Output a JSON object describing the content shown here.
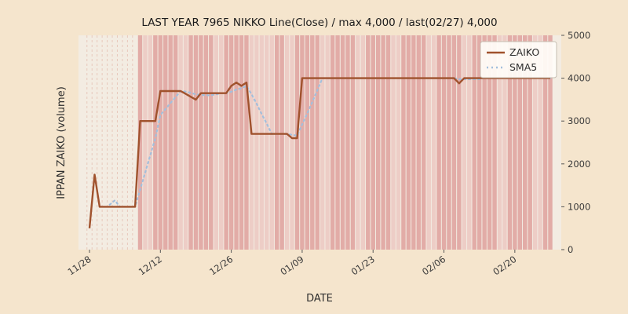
{
  "chart_data": {
    "type": "line",
    "title": "LAST YEAR 7965 NIKKO Line(Close) / max 4,000 / last(02/27) 4,000",
    "xlabel": "DATE",
    "ylabel": "IPPAN ZAIKO (volume)",
    "x_start": "11/28",
    "x_end": "02/27",
    "x_ticks": [
      "11/28",
      "12/12",
      "12/26",
      "01/09",
      "01/23",
      "02/06",
      "02/20"
    ],
    "y_ticks": [
      0,
      1000,
      2000,
      3000,
      4000,
      5000
    ],
    "ylim": [
      0,
      5000
    ],
    "legend_position": "upper right",
    "max_value": 4000,
    "last_date": "02/27",
    "last_value": 4000,
    "series": [
      {
        "name": "ZAIKO",
        "style": "solid",
        "color": "#a0522d",
        "points": [
          [
            "11/28",
            500
          ],
          [
            "11/29",
            1750
          ],
          [
            "11/30",
            1000
          ],
          [
            "12/07",
            1000
          ],
          [
            "12/08",
            3000
          ],
          [
            "12/11",
            3000
          ],
          [
            "12/12",
            3700
          ],
          [
            "12/16",
            3700
          ],
          [
            "12/19",
            3500
          ],
          [
            "12/20",
            3650
          ],
          [
            "12/25",
            3650
          ],
          [
            "12/26",
            3820
          ],
          [
            "12/27",
            3900
          ],
          [
            "12/28",
            3820
          ],
          [
            "12/29",
            3900
          ],
          [
            "12/30",
            2700
          ],
          [
            "01/06",
            2700
          ],
          [
            "01/07",
            2600
          ],
          [
            "01/08",
            2600
          ],
          [
            "01/09",
            4000
          ],
          [
            "02/08",
            4000
          ],
          [
            "02/09",
            3880
          ],
          [
            "02/10",
            4000
          ],
          [
            "02/27",
            4000
          ]
        ]
      },
      {
        "name": "SMA5",
        "style": "dotted",
        "color": "#a3bfdc",
        "derived": "5-day moving average of ZAIKO"
      }
    ],
    "shading": {
      "plot_bg": "#f3ece2",
      "band_color": "#e2aca7",
      "band_light_color": "#edcdc6",
      "band_start": "12/08",
      "light_day_offsets": [
        4,
        5
      ],
      "light_ranges": [
        [
          "12/31",
          "01/03"
        ]
      ],
      "pre_band_grid_color": "#e8c8bb"
    },
    "colors": {
      "figure_bg": "#f5e5cd",
      "text": "#2e2e2e",
      "tick_text": "#3a3a3a"
    }
  }
}
